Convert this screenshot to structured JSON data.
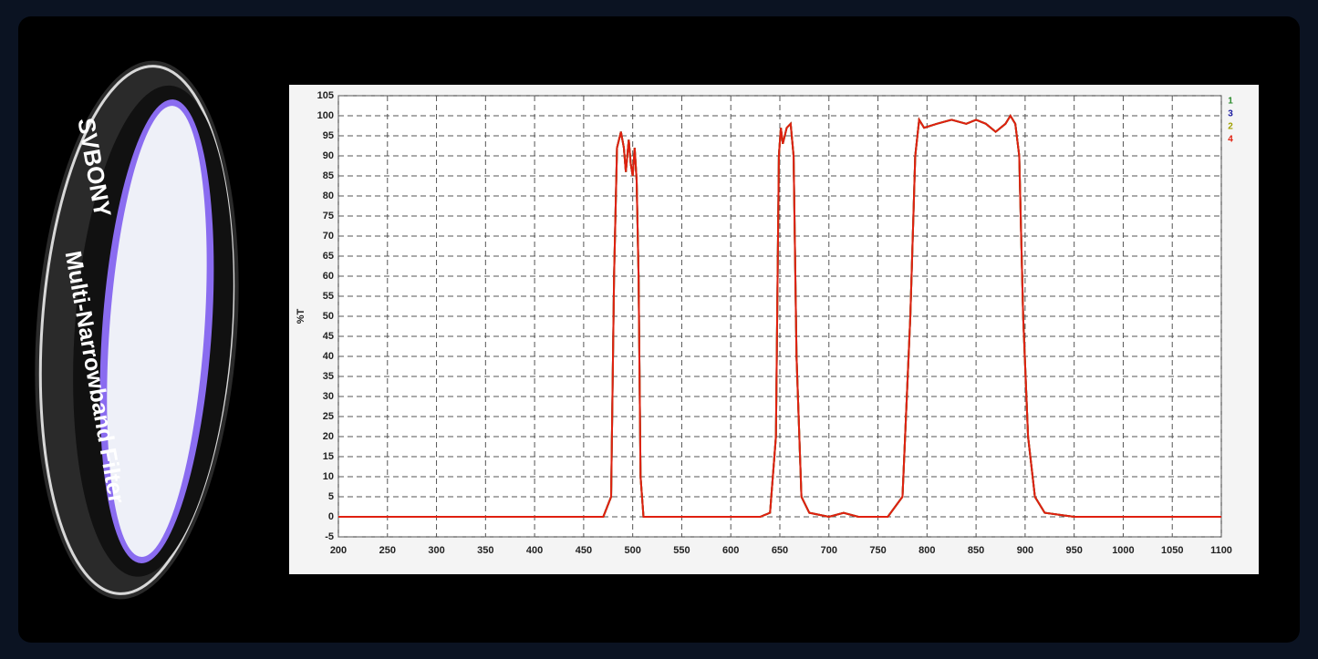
{
  "product": {
    "brand": "SVBONY",
    "label": "Multi-Narrowband Filter"
  },
  "chart_data": {
    "type": "line",
    "y_label": "%T",
    "grid": true,
    "legend": "upper right",
    "x": [
      200,
      470,
      478,
      481,
      484,
      488,
      491,
      493,
      496,
      498,
      500,
      502,
      504,
      506,
      508,
      511,
      630,
      640,
      646,
      649,
      651,
      653,
      657,
      661,
      664,
      667,
      672,
      680,
      700,
      715,
      730,
      760,
      775,
      783,
      788,
      792,
      797,
      810,
      825,
      840,
      850,
      860,
      870,
      880,
      885,
      890,
      894,
      898,
      903,
      910,
      920,
      950,
      1100
    ],
    "series": [
      {
        "name": "1",
        "color": "#2a8a2a",
        "values": [
          0,
          0,
          5,
          60,
          92,
          96,
          92,
          86,
          94,
          88,
          85,
          92,
          84,
          60,
          10,
          0,
          0,
          1,
          20,
          90,
          97,
          93,
          97,
          98,
          90,
          40,
          5,
          1,
          0,
          1,
          0,
          0,
          5,
          50,
          90,
          99,
          97,
          98,
          99,
          98,
          99,
          98,
          96,
          98,
          100,
          98,
          90,
          50,
          20,
          5,
          1,
          0,
          0
        ]
      },
      {
        "name": "3",
        "color": "#1a1aa0",
        "values": [
          0,
          0,
          5,
          60,
          92,
          96,
          92,
          86,
          94,
          88,
          85,
          92,
          84,
          60,
          10,
          0,
          0,
          1,
          20,
          90,
          97,
          93,
          97,
          98,
          90,
          40,
          5,
          1,
          0,
          1,
          0,
          0,
          5,
          50,
          90,
          99,
          97,
          98,
          99,
          98,
          99,
          98,
          96,
          98,
          100,
          98,
          90,
          50,
          20,
          5,
          1,
          0,
          0
        ]
      },
      {
        "name": "2",
        "color": "#a0a000",
        "values": [
          0,
          0,
          5,
          60,
          92,
          96,
          92,
          86,
          94,
          88,
          85,
          92,
          84,
          60,
          10,
          0,
          0,
          1,
          20,
          90,
          97,
          93,
          97,
          98,
          90,
          40,
          5,
          1,
          0,
          1,
          0,
          0,
          5,
          50,
          90,
          99,
          97,
          98,
          99,
          98,
          99,
          98,
          96,
          98,
          100,
          98,
          90,
          50,
          20,
          5,
          1,
          0,
          0
        ]
      },
      {
        "name": "4",
        "color": "#e02010",
        "values": [
          0,
          0,
          5,
          60,
          92,
          96,
          92,
          86,
          94,
          88,
          85,
          92,
          84,
          60,
          10,
          0,
          0,
          1,
          20,
          90,
          97,
          93,
          97,
          98,
          90,
          40,
          5,
          1,
          0,
          1,
          0,
          0,
          5,
          50,
          90,
          99,
          97,
          98,
          99,
          98,
          99,
          98,
          96,
          98,
          100,
          98,
          90,
          50,
          20,
          5,
          1,
          0,
          0
        ]
      }
    ],
    "xlim": [
      200,
      1100
    ],
    "xticks": [
      200,
      250,
      300,
      350,
      400,
      450,
      500,
      550,
      600,
      650,
      700,
      750,
      800,
      850,
      900,
      950,
      1000,
      1050,
      1100
    ],
    "ylim": [
      -5,
      105
    ],
    "yticks": [
      -5,
      0,
      5,
      10,
      15,
      20,
      25,
      30,
      35,
      40,
      45,
      50,
      55,
      60,
      65,
      70,
      75,
      80,
      85,
      90,
      95,
      100,
      105
    ]
  }
}
